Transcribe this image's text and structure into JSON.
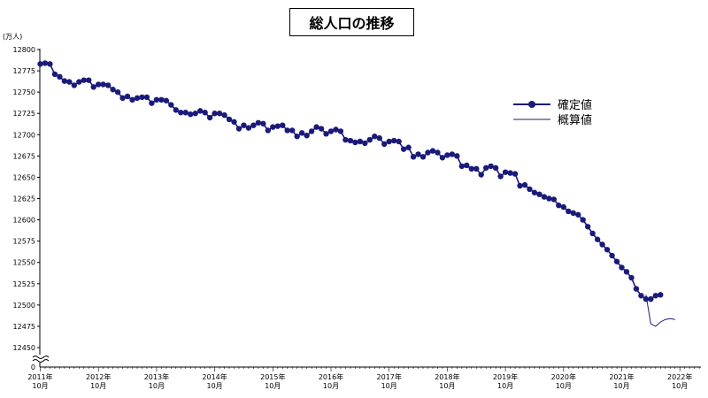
{
  "chart_data": {
    "type": "line",
    "title": "総人口の推移",
    "unit_label": "(万人)",
    "ylim": [
      12450,
      12800
    ],
    "y_ticks": [
      "12800",
      "12775",
      "12750",
      "12725",
      "12700",
      "12675",
      "12650",
      "12625",
      "12600",
      "12575",
      "12550",
      "12525",
      "12500",
      "12475",
      "12450"
    ],
    "y_zero_label": "0",
    "x_tick_years": [
      "2011年",
      "2012年",
      "2013年",
      "2014年",
      "2015年",
      "2016年",
      "2017年",
      "2018年",
      "2019年",
      "2020年",
      "2021年",
      "2022年"
    ],
    "x_tick_month": "10月",
    "series": [
      {
        "name": "確定値",
        "color": "#1a1a7a",
        "marker": "circle",
        "x_start": "2011-10",
        "values": [
          12783,
          12784,
          12783,
          12771,
          12768,
          12763,
          12762,
          12758,
          12762,
          12764,
          12764,
          12756,
          12759,
          12759,
          12758,
          12753,
          12750,
          12743,
          12745,
          12741,
          12743,
          12744,
          12744,
          12737,
          12741,
          12741,
          12740,
          12735,
          12729,
          12726,
          12726,
          12724,
          12725,
          12728,
          12726,
          12720,
          12725,
          12725,
          12723,
          12718,
          12715,
          12707,
          12711,
          12708,
          12711,
          12714,
          12713,
          12705,
          12709,
          12710,
          12711,
          12705,
          12705,
          12698,
          12702,
          12699,
          12704,
          12709,
          12707,
          12701,
          12704,
          12706,
          12704,
          12694,
          12693,
          12691,
          12692,
          12690,
          12694,
          12698,
          12696,
          12689,
          12692,
          12693,
          12692,
          12683,
          12685,
          12674,
          12677,
          12674,
          12679,
          12681,
          12679,
          12673,
          12676,
          12677,
          12675,
          12663,
          12664,
          12660,
          12660,
          12653,
          12661,
          12663,
          12661,
          12651,
          12656,
          12655,
          12654,
          12640,
          12641,
          12636,
          12632,
          12630,
          12627,
          12625,
          12624,
          12617,
          12615,
          12610,
          12608,
          12606,
          12600,
          12592,
          12584,
          12577,
          12571,
          12565,
          12558,
          12551,
          12544,
          12539,
          12532,
          12519,
          12511,
          12507,
          12507,
          12511,
          12512
        ]
      },
      {
        "name": "概算値",
        "color": "#1a1a7a",
        "marker": "none",
        "x_start": "2022-03",
        "values": [
          12512,
          12478,
          12475,
          12480,
          12483,
          12484,
          12483
        ]
      }
    ],
    "legend_position": "right",
    "grid": false
  }
}
